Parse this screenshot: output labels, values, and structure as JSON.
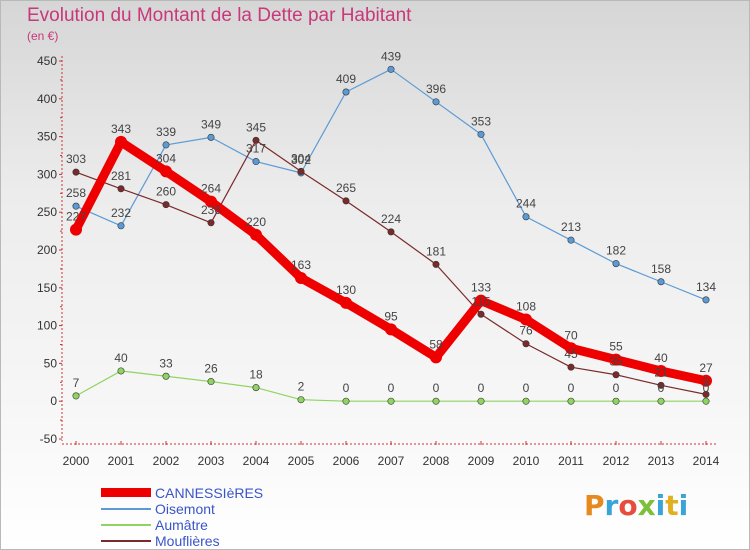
{
  "title": "Evolution du Montant de la Dette par Habitant",
  "unit": "(en €)",
  "logo": "Proxiti",
  "colors": {
    "title": "#c8387a",
    "axis_text": "#333333",
    "legend_text": "#3a55c8"
  },
  "chart_data": {
    "type": "line",
    "x": [
      2000,
      2001,
      2002,
      2003,
      2004,
      2005,
      2006,
      2007,
      2008,
      2009,
      2010,
      2011,
      2012,
      2013,
      2014
    ],
    "ylim": [
      -50,
      450
    ],
    "yticks": [
      -50,
      0,
      50,
      100,
      150,
      200,
      250,
      300,
      350,
      400,
      450
    ],
    "grid": false,
    "legend_position": "bottom-left",
    "series": [
      {
        "name": "CANNESSIèRES",
        "color": "#ee0000",
        "values": [
          227,
          343,
          304,
          264,
          220,
          163,
          130,
          95,
          58,
          133,
          108,
          70,
          55,
          40,
          27
        ]
      },
      {
        "name": "Oisemont",
        "color": "#5b9bd5",
        "values": [
          258,
          232,
          339,
          349,
          317,
          302,
          409,
          439,
          396,
          353,
          244,
          213,
          182,
          158,
          134
        ]
      },
      {
        "name": "Aumâtre",
        "color": "#8fd460",
        "values": [
          7,
          40,
          33,
          26,
          18,
          2,
          0,
          0,
          0,
          0,
          0,
          0,
          0,
          0,
          0
        ]
      },
      {
        "name": "Mouflières",
        "color": "#7b2a2a",
        "values": [
          303,
          281,
          260,
          236,
          345,
          304,
          265,
          224,
          181,
          115,
          76,
          45,
          35,
          21,
          9
        ]
      }
    ]
  }
}
